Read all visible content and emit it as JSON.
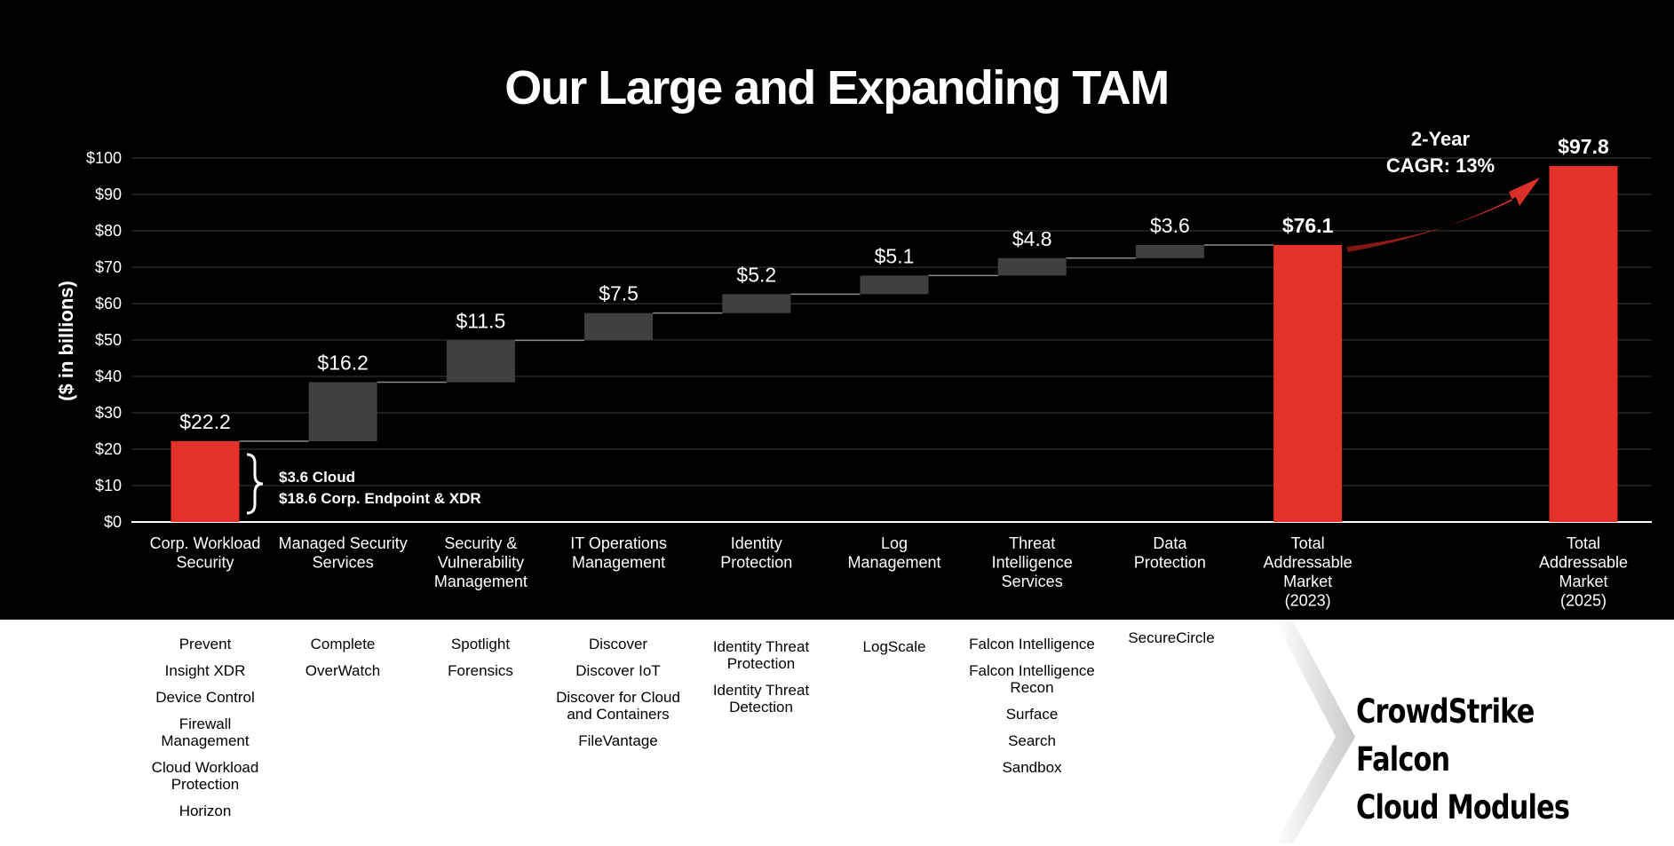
{
  "title": "Our Large and Expanding TAM",
  "chart_data": {
    "type": "bar",
    "subtype": "waterfall",
    "title": "Our Large and Expanding TAM",
    "ylabel": "($ in billions)",
    "ylim": [
      0,
      100
    ],
    "yticks": [
      "$0",
      "$10",
      "$20",
      "$30",
      "$40",
      "$50",
      "$60",
      "$70",
      "$80",
      "$90",
      "$100"
    ],
    "grid": true,
    "bars": [
      {
        "category": "Corp. Workload Security",
        "label_lines": [
          "Corp. Workload",
          "Security"
        ],
        "value_label": "$22.2",
        "start": 0,
        "end": 22.2,
        "kind": "total"
      },
      {
        "category": "Managed Security Services",
        "label_lines": [
          "Managed Security",
          "Services"
        ],
        "value_label": "$16.2",
        "start": 22.2,
        "end": 38.4,
        "kind": "increment"
      },
      {
        "category": "Security & Vulnerability Management",
        "label_lines": [
          "Security &",
          "Vulnerability",
          "Management"
        ],
        "value_label": "$11.5",
        "start": 38.4,
        "end": 49.9,
        "kind": "increment"
      },
      {
        "category": "IT Operations Management",
        "label_lines": [
          "IT Operations",
          "Management"
        ],
        "value_label": "$7.5",
        "start": 49.9,
        "end": 57.4,
        "kind": "increment"
      },
      {
        "category": "Identity Protection",
        "label_lines": [
          "Identity",
          "Protection"
        ],
        "value_label": "$5.2",
        "start": 57.4,
        "end": 62.6,
        "kind": "increment"
      },
      {
        "category": "Log Management",
        "label_lines": [
          "Log",
          "Management"
        ],
        "value_label": "$5.1",
        "start": 62.6,
        "end": 67.7,
        "kind": "increment"
      },
      {
        "category": "Threat Intelligence Services",
        "label_lines": [
          "Threat",
          "Intelligence",
          "Services"
        ],
        "value_label": "$4.8",
        "start": 67.7,
        "end": 72.5,
        "kind": "increment"
      },
      {
        "category": "Data Protection",
        "label_lines": [
          "Data",
          "Protection"
        ],
        "value_label": "$3.6",
        "start": 72.5,
        "end": 76.1,
        "kind": "increment"
      },
      {
        "category": "Total Addressable Market (2023)",
        "label_lines": [
          "Total",
          "Addressable",
          "Market",
          "(2023)"
        ],
        "value_label": "$76.1",
        "start": 0,
        "end": 76.1,
        "kind": "total"
      },
      {
        "category": "Total Addressable Market (2025)",
        "label_lines": [
          "Total",
          "Addressable",
          "Market",
          "(2025)"
        ],
        "value_label": "$97.8",
        "start": 0,
        "end": 97.8,
        "kind": "total",
        "slot": 10
      }
    ],
    "annotations": {
      "breakdown": [
        "$3.6 Cloud",
        "$18.6 Corp. Endpoint & XDR"
      ],
      "cagr": [
        "2-Year",
        "CAGR: 13%"
      ]
    },
    "colors": {
      "total": "#e4322b",
      "increment": "#404040",
      "background": "#000000",
      "connector": "#8c8c8c"
    }
  },
  "modules": [
    {
      "column": "Corp. Workload Security",
      "items": [
        "Prevent",
        "Insight XDR",
        "Device Control",
        "Firewall Management",
        "Cloud Workload Protection",
        "Horizon"
      ]
    },
    {
      "column": "Managed Security Services",
      "items": [
        "Complete",
        "OverWatch"
      ]
    },
    {
      "column": "Security & Vulnerability Management",
      "items": [
        "Spotlight",
        "Forensics"
      ]
    },
    {
      "column": "IT Operations Management",
      "items": [
        "Discover",
        "Discover IoT",
        "Discover for Cloud and Containers",
        "FileVantage"
      ]
    },
    {
      "column": "Identity Protection",
      "items": [
        "Identity Threat Protection",
        "Identity Threat Detection"
      ]
    },
    {
      "column": "Log Management",
      "items": [
        "LogScale"
      ]
    },
    {
      "column": "Threat Intelligence Services",
      "items": [
        "Falcon Intelligence",
        "Falcon Intelligence Recon",
        "Surface",
        "Search",
        "Sandbox"
      ]
    },
    {
      "column": "Data Protection",
      "items": [
        "SecureCircle"
      ]
    }
  ],
  "brand": {
    "line1": "CrowdStrike Falcon",
    "line2": "Cloud Modules"
  }
}
